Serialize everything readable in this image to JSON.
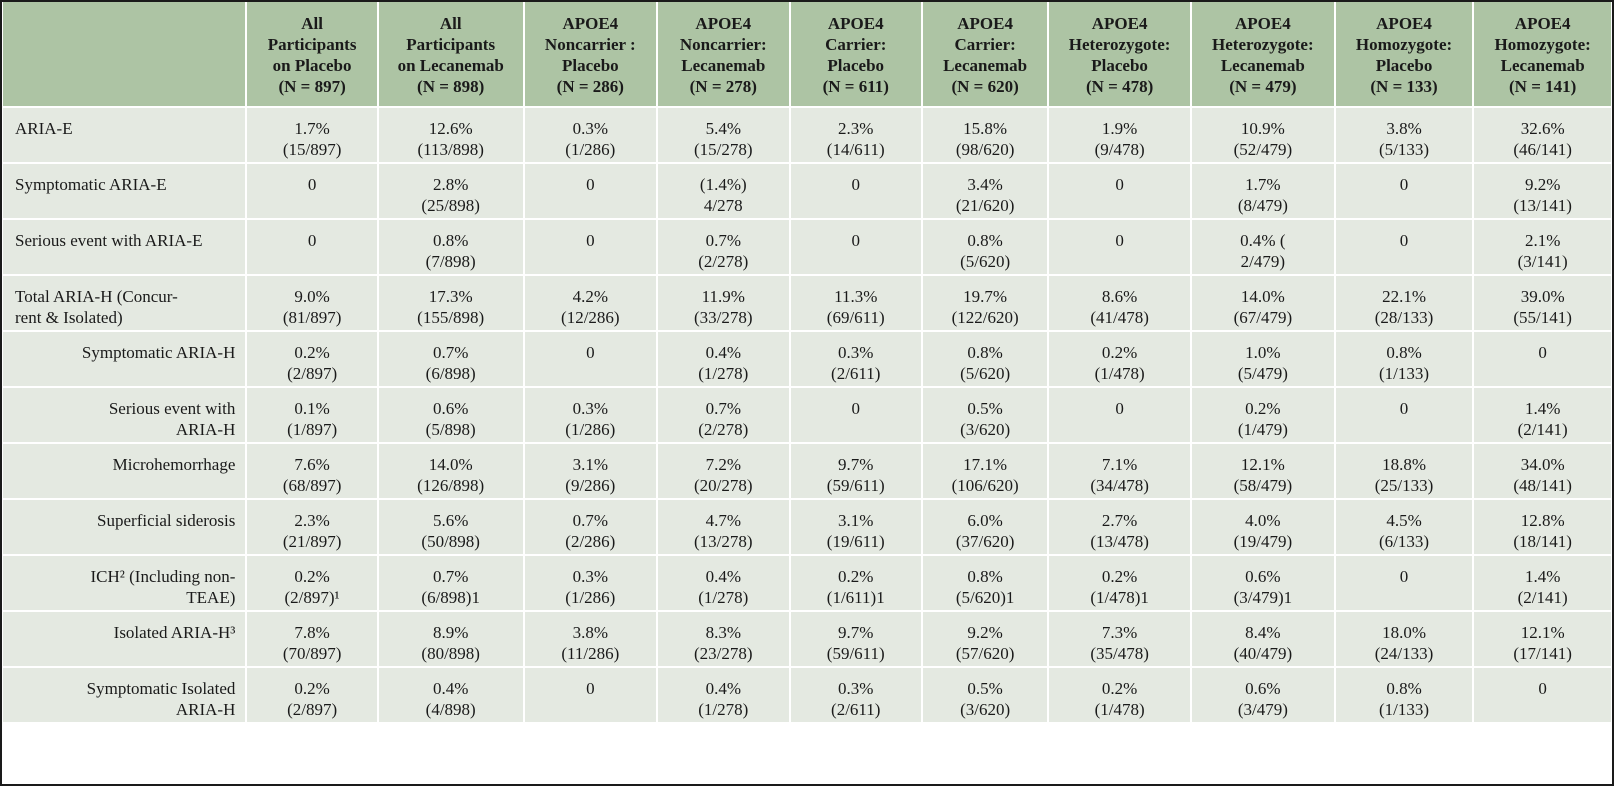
{
  "header": {
    "columns": [
      [
        "All",
        "Participants",
        "on Placebo",
        "(N = 897)"
      ],
      [
        "All",
        "Participants",
        "on Lecanemab",
        "(N = 898)"
      ],
      [
        "APOE4",
        "Noncarrier :",
        "Placebo",
        "(N = 286)"
      ],
      [
        "APOE4",
        "Noncarrier:",
        "Lecanemab",
        "(N = 278)"
      ],
      [
        "APOE4",
        "Carrier:",
        "Placebo",
        "(N = 611)"
      ],
      [
        "APOE4",
        "Carrier:",
        "Lecanemab",
        "(N = 620)"
      ],
      [
        "APOE4",
        "Heterozygote:",
        "Placebo",
        "(N = 478)"
      ],
      [
        "APOE4",
        "Heterozygote:",
        "Lecanemab",
        "(N = 479)"
      ],
      [
        "APOE4",
        "Homozygote:",
        "Placebo",
        "(N = 133)"
      ],
      [
        "APOE4",
        "Homozygote:",
        "Lecanemab",
        "(N = 141)"
      ]
    ]
  },
  "rows": [
    {
      "label": [
        "ARIA-E"
      ],
      "indent": false,
      "cells": [
        [
          "1.7%",
          "(15/897)"
        ],
        [
          "12.6%",
          "(113/898)"
        ],
        [
          "0.3%",
          "(1/286)"
        ],
        [
          "5.4%",
          "(15/278)"
        ],
        [
          "2.3%",
          "(14/611)"
        ],
        [
          "15.8%",
          "(98/620)"
        ],
        [
          "1.9%",
          "(9/478)"
        ],
        [
          "10.9%",
          "(52/479)"
        ],
        [
          "3.8%",
          "(5/133)"
        ],
        [
          "32.6%",
          "(46/141)"
        ]
      ]
    },
    {
      "label": [
        "Symptomatic ARIA-E"
      ],
      "indent": false,
      "cells": [
        [
          "0"
        ],
        [
          "2.8%",
          "(25/898)"
        ],
        [
          "0"
        ],
        [
          "(1.4%)",
          "4/278"
        ],
        [
          "0"
        ],
        [
          "3.4%",
          "(21/620)"
        ],
        [
          "0"
        ],
        [
          "1.7%",
          "(8/479)"
        ],
        [
          "0"
        ],
        [
          "9.2%",
          "(13/141)"
        ]
      ]
    },
    {
      "label": [
        "Serious event with ARIA-E"
      ],
      "indent": false,
      "cells": [
        [
          "0"
        ],
        [
          "0.8%",
          "(7/898)"
        ],
        [
          "0"
        ],
        [
          "0.7%",
          "(2/278)"
        ],
        [
          "0"
        ],
        [
          "0.8%",
          "(5/620)"
        ],
        [
          "0"
        ],
        [
          "0.4% (",
          "2/479)"
        ],
        [
          "0"
        ],
        [
          "2.1%",
          "(3/141)"
        ]
      ]
    },
    {
      "label": [
        "Total ARIA-H  (Concur-",
        "rent & Isolated)"
      ],
      "indent": false,
      "cells": [
        [
          "9.0%",
          "(81/897)"
        ],
        [
          "17.3%",
          "(155/898)"
        ],
        [
          "4.2%",
          "(12/286)"
        ],
        [
          "11.9%",
          "(33/278)"
        ],
        [
          "11.3%",
          "(69/611)"
        ],
        [
          "19.7%",
          "(122/620)"
        ],
        [
          "8.6%",
          "(41/478)"
        ],
        [
          "14.0%",
          "(67/479)"
        ],
        [
          "22.1%",
          "(28/133)"
        ],
        [
          "39.0%",
          "(55/141)"
        ]
      ]
    },
    {
      "label": [
        "Symptomatic ARIA-H"
      ],
      "indent": true,
      "cells": [
        [
          "0.2%",
          "(2/897)"
        ],
        [
          "0.7%",
          "(6/898)"
        ],
        [
          "0"
        ],
        [
          "0.4%",
          "(1/278)"
        ],
        [
          "0.3%",
          "(2/611)"
        ],
        [
          "0.8%",
          "(5/620)"
        ],
        [
          "0.2%",
          "(1/478)"
        ],
        [
          "1.0%",
          "(5/479)"
        ],
        [
          "0.8%",
          "(1/133)"
        ],
        [
          "0"
        ]
      ]
    },
    {
      "label": [
        "Serious event with",
        "ARIA-H"
      ],
      "indent": true,
      "cells": [
        [
          "0.1%",
          "(1/897)"
        ],
        [
          "0.6%",
          "(5/898)"
        ],
        [
          "0.3%",
          "(1/286)"
        ],
        [
          "0.7%",
          "(2/278)"
        ],
        [
          "0"
        ],
        [
          "0.5%",
          "(3/620)"
        ],
        [
          "0"
        ],
        [
          "0.2%",
          "(1/479)"
        ],
        [
          "0"
        ],
        [
          "1.4%",
          "(2/141)"
        ]
      ]
    },
    {
      "label": [
        "Microhemorrhage"
      ],
      "indent": true,
      "cells": [
        [
          "7.6%",
          "(68/897)"
        ],
        [
          "14.0%",
          "(126/898)"
        ],
        [
          "3.1%",
          "(9/286)"
        ],
        [
          "7.2%",
          "(20/278)"
        ],
        [
          "9.7%",
          "(59/611)"
        ],
        [
          "17.1%",
          "(106/620)"
        ],
        [
          "7.1%",
          "(34/478)"
        ],
        [
          "12.1%",
          "(58/479)"
        ],
        [
          "18.8%",
          "(25/133)"
        ],
        [
          "34.0%",
          "(48/141)"
        ]
      ]
    },
    {
      "label": [
        "Superficial siderosis"
      ],
      "indent": true,
      "cells": [
        [
          "2.3%",
          "(21/897)"
        ],
        [
          "5.6%",
          "(50/898)"
        ],
        [
          "0.7%",
          "(2/286)"
        ],
        [
          "4.7%",
          "(13/278)"
        ],
        [
          "3.1%",
          "(19/611)"
        ],
        [
          "6.0%",
          "(37/620)"
        ],
        [
          "2.7%",
          "(13/478)"
        ],
        [
          "4.0%",
          "(19/479)"
        ],
        [
          "4.5%",
          "(6/133)"
        ],
        [
          "12.8%",
          "(18/141)"
        ]
      ]
    },
    {
      "label": [
        "ICH² (Including non-",
        "TEAE)"
      ],
      "indent": true,
      "cells": [
        [
          "0.2%",
          "(2/897)¹"
        ],
        [
          "0.7%",
          "(6/898)1"
        ],
        [
          "0.3%",
          "(1/286)"
        ],
        [
          "0.4%",
          "(1/278)"
        ],
        [
          "0.2%",
          "(1/611)1"
        ],
        [
          "0.8%",
          "(5/620)1"
        ],
        [
          "0.2%",
          "(1/478)1"
        ],
        [
          "0.6%",
          "(3/479)1"
        ],
        [
          "0"
        ],
        [
          "1.4%",
          "(2/141)"
        ]
      ]
    },
    {
      "label": [
        "Isolated ARIA-H³"
      ],
      "indent": true,
      "cells": [
        [
          "7.8%",
          "(70/897)"
        ],
        [
          "8.9%",
          "(80/898)"
        ],
        [
          "3.8%",
          "(11/286)"
        ],
        [
          "8.3%",
          "(23/278)"
        ],
        [
          "9.7%",
          "(59/611)"
        ],
        [
          "9.2%",
          "(57/620)"
        ],
        [
          "7.3%",
          "(35/478)"
        ],
        [
          "8.4%",
          "(40/479)"
        ],
        [
          "18.0%",
          "(24/133)"
        ],
        [
          "12.1%",
          "(17/141)"
        ]
      ]
    },
    {
      "label": [
        "Symptomatic Isolated",
        "ARIA-H"
      ],
      "indent": true,
      "cells": [
        [
          "0.2%",
          "(2/897)"
        ],
        [
          "0.4%",
          "(4/898)"
        ],
        [
          "0"
        ],
        [
          "0.4%",
          "(1/278)"
        ],
        [
          "0.3%",
          "(2/611)"
        ],
        [
          "0.5%",
          "(3/620)"
        ],
        [
          "0.2%",
          "(1/478)"
        ],
        [
          "0.6%",
          "(3/479)"
        ],
        [
          "0.8%",
          "(1/133)"
        ],
        [
          "0"
        ]
      ]
    }
  ],
  "colors": {
    "header_bg": "#adc4a4",
    "body_bg": "#e4e9e1",
    "grid_line": "#ffffff",
    "outer_border": "#1a1a1a"
  }
}
